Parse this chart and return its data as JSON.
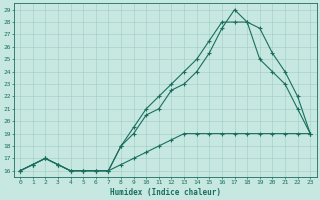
{
  "xlabel": "Humidex (Indice chaleur)",
  "bg_color": "#c6e8e0",
  "grid_color": "#9fccc4",
  "line_color": "#1a6e60",
  "line1_x": [
    0,
    1,
    2,
    3,
    4,
    5,
    6,
    7,
    8,
    9,
    10,
    11,
    12,
    13,
    14,
    15,
    16,
    17,
    18,
    19,
    20,
    21,
    22,
    23
  ],
  "line1_y": [
    16,
    16.5,
    17,
    16.5,
    16,
    16,
    16,
    16,
    16.5,
    17,
    17.5,
    18,
    18.5,
    19,
    19,
    19,
    19,
    19,
    19,
    19,
    19,
    19,
    19,
    19
  ],
  "line2_x": [
    0,
    1,
    2,
    3,
    4,
    5,
    6,
    7,
    8,
    9,
    10,
    11,
    12,
    13,
    14,
    15,
    16,
    17,
    18,
    19,
    20,
    21,
    22,
    23
  ],
  "line2_y": [
    16,
    16.5,
    17,
    16.5,
    16,
    16,
    16,
    16,
    18,
    19,
    20.5,
    21,
    22.5,
    23,
    24,
    25.5,
    27.5,
    29,
    28,
    25,
    24,
    23,
    21,
    19
  ],
  "line3_x": [
    0,
    1,
    2,
    3,
    4,
    5,
    6,
    7,
    8,
    9,
    10,
    11,
    12,
    13,
    14,
    15,
    16,
    17,
    18,
    19,
    20,
    21,
    22,
    23
  ],
  "line3_y": [
    16,
    16.5,
    17,
    16.5,
    16,
    16,
    16,
    16,
    18,
    19.5,
    21,
    22,
    23,
    24,
    25,
    26.5,
    28,
    28,
    28,
    27.5,
    25.5,
    24,
    22,
    19
  ],
  "xlim": [
    -0.5,
    23.5
  ],
  "ylim": [
    15.5,
    29.5
  ],
  "yticks": [
    16,
    17,
    18,
    19,
    20,
    21,
    22,
    23,
    24,
    25,
    26,
    27,
    28,
    29
  ],
  "xticks": [
    0,
    1,
    2,
    3,
    4,
    5,
    6,
    7,
    8,
    9,
    10,
    11,
    12,
    13,
    14,
    15,
    16,
    17,
    18,
    19,
    20,
    21,
    22,
    23
  ]
}
